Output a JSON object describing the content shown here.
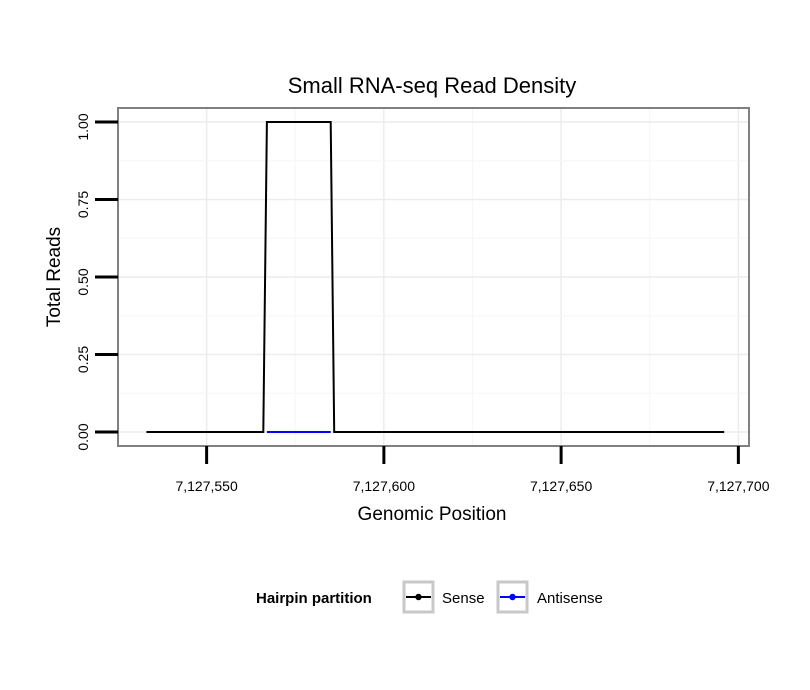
{
  "chart_data": {
    "type": "line",
    "title": "Small RNA-seq Read Density",
    "xlabel": "Genomic Position",
    "ylabel": "Total Reads",
    "xlim": [
      7127525,
      7127703
    ],
    "ylim": [
      -0.045,
      1.045
    ],
    "x_ticks": [
      7127550,
      7127600,
      7127650,
      7127700
    ],
    "x_tick_labels": [
      "7,127,550",
      "7,127,600",
      "7,127,650",
      "7,127,700"
    ],
    "y_ticks": [
      0,
      0.25,
      0.5,
      0.75,
      1.0
    ],
    "y_tick_labels": [
      "0.00",
      "0.25",
      "0.50",
      "0.75",
      "1.00"
    ],
    "grid": true,
    "legend": {
      "title": "Hairpin partition",
      "position": "bottom",
      "entries": [
        {
          "name": "Sense",
          "color": "#000000"
        },
        {
          "name": "Antisense",
          "color": "#0000ff"
        }
      ]
    },
    "series": [
      {
        "name": "Sense",
        "color": "#000000",
        "x": [
          7127533,
          7127566,
          7127567,
          7127585,
          7127586,
          7127696
        ],
        "y": [
          0,
          0,
          1,
          1,
          0,
          0
        ]
      },
      {
        "name": "Antisense",
        "color": "#0000ff",
        "x": [
          7127567,
          7127585
        ],
        "y": [
          0,
          0
        ]
      }
    ]
  }
}
